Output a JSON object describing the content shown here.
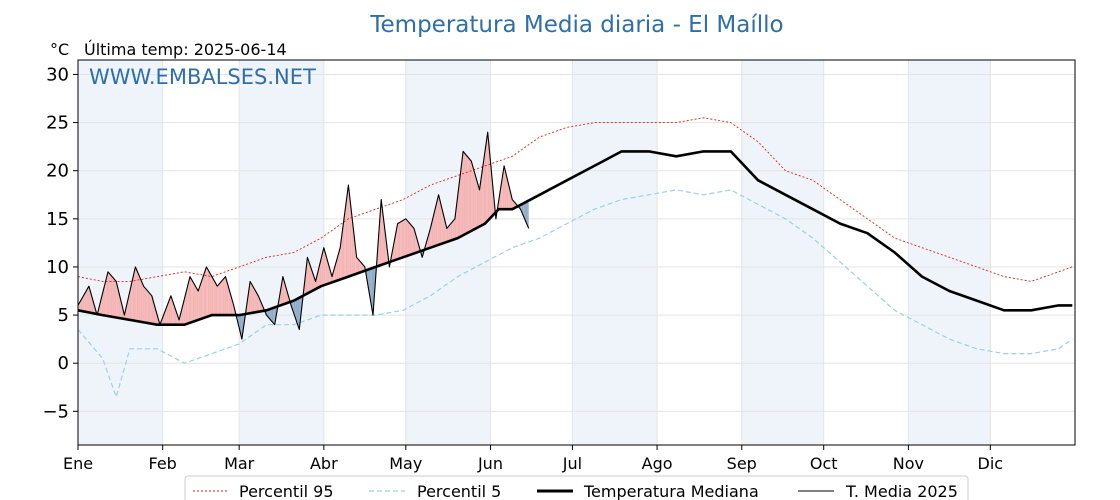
{
  "chart": {
    "title": "Temperatura Media diaria - El Maíllo",
    "unit": "°C",
    "last_temp": "Última temp: 2025-06-14",
    "watermark": "WWW.EMBALSES.NET"
  },
  "chart_data": {
    "type": "line",
    "title": "Temperatura Media diaria - El Maíllo",
    "ylabel": "°C",
    "ylim": [
      -8.5,
      31.5
    ],
    "yticks": [
      -5,
      0,
      5,
      10,
      15,
      20,
      25,
      30
    ],
    "ytick_labels": [
      "−5",
      "0",
      "5",
      "10",
      "15",
      "20",
      "25",
      "30"
    ],
    "x_unit": "day of year",
    "xlim": [
      1,
      366
    ],
    "months": [
      {
        "label": "Ene",
        "day": 1
      },
      {
        "label": "Feb",
        "day": 32
      },
      {
        "label": "Mar",
        "day": 60
      },
      {
        "label": "Abr",
        "day": 91
      },
      {
        "label": "May",
        "day": 121
      },
      {
        "label": "Jun",
        "day": 152
      },
      {
        "label": "Jul",
        "day": 182
      },
      {
        "label": "Ago",
        "day": 213
      },
      {
        "label": "Sep",
        "day": 244
      },
      {
        "label": "Oct",
        "day": 274
      },
      {
        "label": "Nov",
        "day": 305
      },
      {
        "label": "Dic",
        "day": 335
      }
    ],
    "grid": true,
    "legend_position": "bottom",
    "colors": {
      "p95": "#e02020",
      "p5": "#9fd0e0",
      "median": "#000000",
      "current": "#000000",
      "above": "#f4b4b4",
      "below": "#8eacc8",
      "shade": "#eef4fa"
    },
    "series": [
      {
        "name": "Percentil 95",
        "style": "dotted",
        "color": "#e02020",
        "x": [
          1,
          10,
          20,
          30,
          40,
          50,
          60,
          70,
          80,
          90,
          100,
          110,
          120,
          130,
          140,
          150,
          155,
          160,
          170,
          180,
          190,
          200,
          210,
          220,
          230,
          240,
          250,
          260,
          270,
          280,
          290,
          300,
          310,
          320,
          330,
          340,
          350,
          360,
          365
        ],
        "y": [
          9,
          8.5,
          8.5,
          9,
          9.5,
          9,
          10,
          11,
          11.5,
          13,
          15,
          16,
          17,
          18.5,
          19.5,
          20.5,
          21,
          21.5,
          23.5,
          24.5,
          25,
          25,
          25,
          25,
          25.5,
          25,
          23,
          20,
          19,
          17,
          15,
          13,
          12,
          11,
          10,
          9,
          8.5,
          9.5,
          10
        ]
      },
      {
        "name": "Percentil 5",
        "style": "dashed",
        "color": "#9fd0e0",
        "x": [
          1,
          10,
          15,
          20,
          30,
          40,
          50,
          60,
          70,
          80,
          90,
          100,
          110,
          120,
          130,
          140,
          150,
          160,
          170,
          180,
          190,
          200,
          210,
          220,
          230,
          240,
          250,
          260,
          270,
          280,
          290,
          300,
          310,
          320,
          330,
          340,
          350,
          360,
          365
        ],
        "y": [
          3.5,
          0.5,
          -3.5,
          1.5,
          1.5,
          0,
          1,
          2,
          4,
          4,
          5,
          5,
          5,
          5.5,
          7,
          9,
          10.5,
          12,
          13,
          14.5,
          16,
          17,
          17.5,
          18,
          17.5,
          18,
          16.5,
          15,
          13,
          10.5,
          8,
          5.5,
          4,
          2.5,
          1.5,
          1,
          1,
          1.5,
          2.5
        ]
      },
      {
        "name": "Temperatura Mediana",
        "style": "solid-thick",
        "color": "#000000",
        "x": [
          1,
          10,
          20,
          30,
          40,
          50,
          60,
          70,
          80,
          90,
          100,
          110,
          120,
          130,
          140,
          150,
          155,
          160,
          170,
          180,
          190,
          200,
          210,
          220,
          230,
          240,
          250,
          260,
          270,
          280,
          290,
          300,
          310,
          320,
          330,
          340,
          350,
          360,
          365
        ],
        "y": [
          5.5,
          5,
          4.5,
          4,
          4,
          5,
          5,
          5.5,
          6.5,
          8,
          9,
          10,
          11,
          12,
          13,
          14.5,
          16,
          16,
          17.5,
          19,
          20.5,
          22,
          22,
          21.5,
          22,
          22,
          19,
          17.5,
          16,
          14.5,
          13.5,
          11.5,
          9,
          7.5,
          6.5,
          5.5,
          5.5,
          6,
          6
        ]
      },
      {
        "name": "T. Media 2025",
        "style": "solid-thin",
        "color": "#000000",
        "x": [
          1,
          5,
          8,
          12,
          15,
          18,
          22,
          25,
          28,
          31,
          35,
          38,
          42,
          45,
          48,
          52,
          55,
          58,
          61,
          64,
          67,
          70,
          73,
          76,
          79,
          82,
          85,
          88,
          91,
          94,
          97,
          100,
          103,
          106,
          109,
          112,
          115,
          118,
          121,
          124,
          127,
          130,
          133,
          136,
          139,
          142,
          145,
          148,
          151,
          154,
          157,
          160,
          163,
          166
        ],
        "y": [
          6,
          8,
          5,
          9.5,
          8.5,
          5,
          10,
          8,
          7,
          4,
          7,
          4.5,
          9,
          7.5,
          10,
          8,
          9,
          6,
          2.5,
          8.5,
          7,
          5,
          4,
          9,
          6,
          3.5,
          11,
          8.5,
          12,
          9,
          12,
          18.5,
          11,
          10,
          5,
          17,
          10,
          14.5,
          15,
          14,
          11,
          14,
          17.5,
          14,
          15,
          22,
          21,
          18,
          24,
          15,
          20.5,
          17,
          16,
          14
        ]
      }
    ]
  },
  "legend": [
    {
      "label": "Percentil 95",
      "style": "dotted",
      "color": "#e02020"
    },
    {
      "label": "Percentil 5",
      "style": "dashed",
      "color": "#9fd0e0"
    },
    {
      "label": "Temperatura Mediana",
      "style": "solid-thick",
      "color": "#000000"
    },
    {
      "label": "T. Media 2025",
      "style": "solid-thin",
      "color": "#000000"
    }
  ]
}
